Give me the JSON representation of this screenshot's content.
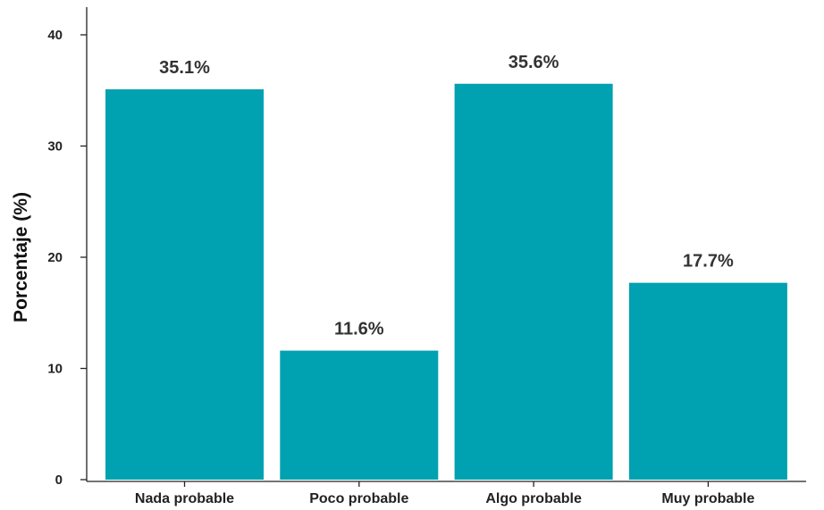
{
  "chart_data": {
    "type": "bar",
    "title": "",
    "xlabel": "",
    "ylabel": "Porcentaje (%)",
    "categories": [
      "Nada probable",
      "Poco probable",
      "Algo probable",
      "Muy probable"
    ],
    "values": [
      35.1,
      11.6,
      35.6,
      17.7
    ],
    "value_labels": [
      "35.1%",
      "11.6%",
      "35.6%",
      "17.7%"
    ],
    "ylim": [
      0,
      42
    ],
    "yticks": [
      0,
      10,
      20,
      30,
      40
    ],
    "ytick_labels": [
      "0",
      "10",
      "20",
      "30",
      "40"
    ],
    "grid": false,
    "legend": "none",
    "bar_color": "#00A1B0"
  }
}
